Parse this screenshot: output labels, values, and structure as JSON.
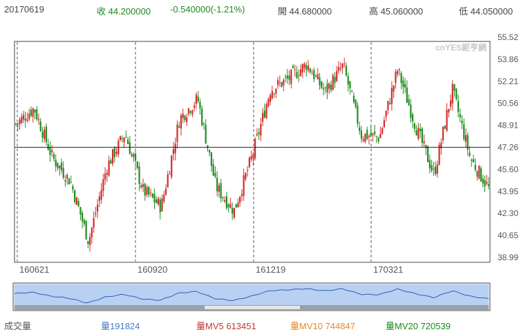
{
  "header": {
    "date": "20170619",
    "close": "收 44.200000",
    "change": "-0.540000(-1.21%)",
    "open": "開 44.680000",
    "high": "高 45.060000",
    "low": "低 44.050000"
  },
  "watermark": "cnYES鉅亨網",
  "footer": {
    "volume_label": "成交量",
    "vol": "量191824",
    "mv5": "量MV5 613451",
    "mv10": "量MV10 744847",
    "mv20": "量MV20 720539"
  },
  "colors": {
    "up": "#d22b2b",
    "down": "#1f8c1f",
    "grid": "#555555",
    "navigator": "#7fa9e6"
  },
  "chart_data": {
    "type": "candlestick",
    "y_tick_labels": [
      "55.52",
      "53.86",
      "52.21",
      "50.56",
      "48.91",
      "47.26",
      "45.60",
      "43.95",
      "42.30",
      "40.65",
      "38.99"
    ],
    "ylim": [
      38.99,
      55.52
    ],
    "x_tick_labels": [
      "160621",
      "160920",
      "161219",
      "170321"
    ],
    "crosshair_y": 47.26,
    "approx_close_path": [
      {
        "date": "160621",
        "value": 49.0
      },
      {
        "date": "160701",
        "value": 50.2
      },
      {
        "date": "160715",
        "value": 46.5
      },
      {
        "date": "160801",
        "value": 44.7
      },
      {
        "date": "160810",
        "value": 40.2
      },
      {
        "date": "160825",
        "value": 45.8
      },
      {
        "date": "160905",
        "value": 48.3
      },
      {
        "date": "160913",
        "value": 44.0
      },
      {
        "date": "160920",
        "value": 42.8
      },
      {
        "date": "161001",
        "value": 49.4
      },
      {
        "date": "161015",
        "value": 50.9
      },
      {
        "date": "161101",
        "value": 44.3
      },
      {
        "date": "161110",
        "value": 42.5
      },
      {
        "date": "161125",
        "value": 46.6
      },
      {
        "date": "161210",
        "value": 51.6
      },
      {
        "date": "161219",
        "value": 52.4
      },
      {
        "date": "170105",
        "value": 53.5
      },
      {
        "date": "170120",
        "value": 51.4
      },
      {
        "date": "170210",
        "value": 53.4
      },
      {
        "date": "170301",
        "value": 48.2
      },
      {
        "date": "170321",
        "value": 48.0
      },
      {
        "date": "170405",
        "value": 53.1
      },
      {
        "date": "170425",
        "value": 48.8
      },
      {
        "date": "170508",
        "value": 45.2
      },
      {
        "date": "170520",
        "value": 51.6
      },
      {
        "date": "170605",
        "value": 46.4
      },
      {
        "date": "170619",
        "value": 44.2
      }
    ]
  }
}
